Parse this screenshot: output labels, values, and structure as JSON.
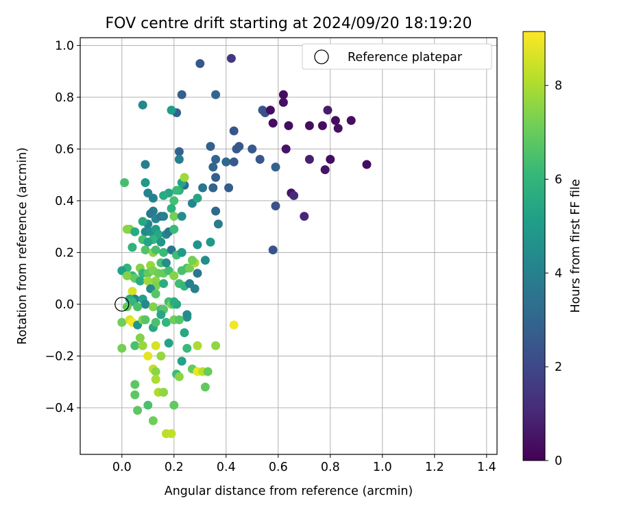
{
  "chart_data": {
    "type": "scatter",
    "title": "FOV centre drift starting at 2024/09/20 18:19:20",
    "xlabel": "Angular distance from reference (arcmin)",
    "ylabel": "Rotation from reference (arcmin)",
    "xlim": [
      -0.16,
      1.44
    ],
    "ylim": [
      -0.58,
      1.03
    ],
    "xticks": [
      0.0,
      0.2,
      0.4,
      0.6,
      0.8,
      1.0,
      1.2,
      1.4
    ],
    "xtick_labels": [
      "0.0",
      "0.2",
      "0.4",
      "0.6",
      "0.8",
      "1.0",
      "1.2",
      "1.4"
    ],
    "yticks": [
      -0.4,
      -0.2,
      0.0,
      0.2,
      0.4,
      0.6,
      0.8,
      1.0
    ],
    "ytick_labels": [
      "−0.4",
      "−0.2",
      "0.0",
      "0.2",
      "0.4",
      "0.6",
      "0.8",
      "1.0"
    ],
    "grid": true,
    "legend": {
      "position": "top-right",
      "entries": [
        "Reference platepar"
      ]
    },
    "reference_point": {
      "x": 0.0,
      "y": 0.0,
      "label": "Reference platepar"
    },
    "colorbar": {
      "label": "Hours from first FF file",
      "colormap": "viridis",
      "range": [
        0,
        9.15
      ],
      "ticks": [
        0,
        2,
        4,
        6,
        8
      ],
      "tick_labels": [
        "0",
        "2",
        "4",
        "6",
        "8"
      ],
      "colors": [
        "#440154",
        "#482878",
        "#3e4989",
        "#31688e",
        "#26828e",
        "#1f9e89",
        "#35b779",
        "#6ece58",
        "#b5de2b",
        "#fde725"
      ]
    },
    "points": [
      [
        0.42,
        0.95,
        1.5
      ],
      [
        0.3,
        0.93,
        2.5
      ],
      [
        0.23,
        0.81,
        2.8
      ],
      [
        0.36,
        0.81,
        3.0
      ],
      [
        0.21,
        0.74,
        2.9
      ],
      [
        0.08,
        0.77,
        4.3
      ],
      [
        0.19,
        0.75,
        5.1
      ],
      [
        0.43,
        0.67,
        2.4
      ],
      [
        0.34,
        0.61,
        2.8
      ],
      [
        0.22,
        0.59,
        2.9
      ],
      [
        0.44,
        0.6,
        2.6
      ],
      [
        0.45,
        0.61,
        2.5
      ],
      [
        0.5,
        0.6,
        2.6
      ],
      [
        0.36,
        0.56,
        3.0
      ],
      [
        0.4,
        0.55,
        3.1
      ],
      [
        0.43,
        0.55,
        2.6
      ],
      [
        0.53,
        0.56,
        2.5
      ],
      [
        0.59,
        0.53,
        2.8
      ],
      [
        0.35,
        0.53,
        3.0
      ],
      [
        0.36,
        0.49,
        2.8
      ],
      [
        0.22,
        0.56,
        3.9
      ],
      [
        0.09,
        0.54,
        4.0
      ],
      [
        0.54,
        0.75,
        2.5
      ],
      [
        0.55,
        0.74,
        2.3
      ],
      [
        0.57,
        0.75,
        0.3
      ],
      [
        0.58,
        0.7,
        0.3
      ],
      [
        0.62,
        0.81,
        0.3
      ],
      [
        0.62,
        0.78,
        0.4
      ],
      [
        0.63,
        0.6,
        0.5
      ],
      [
        0.64,
        0.69,
        0.3
      ],
      [
        0.72,
        0.69,
        0.3
      ],
      [
        0.72,
        0.56,
        0.8
      ],
      [
        0.77,
        0.69,
        0.3
      ],
      [
        0.78,
        0.52,
        0.5
      ],
      [
        0.79,
        0.75,
        0.7
      ],
      [
        0.8,
        0.56,
        0.3
      ],
      [
        0.82,
        0.71,
        0.3
      ],
      [
        0.83,
        0.68,
        0.4
      ],
      [
        0.88,
        0.71,
        0.3
      ],
      [
        0.94,
        0.54,
        0.3
      ],
      [
        0.65,
        0.43,
        0.5
      ],
      [
        0.66,
        0.42,
        1.1
      ],
      [
        0.7,
        0.34,
        1.0
      ],
      [
        0.59,
        0.38,
        2.3
      ],
      [
        0.58,
        0.21,
        2.4
      ],
      [
        0.41,
        0.45,
        2.7
      ],
      [
        0.35,
        0.45,
        2.9
      ],
      [
        0.31,
        0.45,
        3.6
      ],
      [
        0.36,
        0.36,
        3.1
      ],
      [
        0.37,
        0.31,
        3.8
      ],
      [
        0.24,
        0.46,
        3.2
      ],
      [
        0.23,
        0.47,
        5.3
      ],
      [
        0.24,
        0.49,
        7.8
      ],
      [
        0.22,
        0.44,
        5.7
      ],
      [
        0.21,
        0.44,
        6.2
      ],
      [
        0.18,
        0.43,
        5.4
      ],
      [
        0.2,
        0.4,
        6.4
      ],
      [
        0.16,
        0.42,
        5.6
      ],
      [
        0.12,
        0.41,
        4.0
      ],
      [
        0.09,
        0.47,
        4.9
      ],
      [
        0.1,
        0.43,
        4.1
      ],
      [
        0.01,
        0.47,
        6.4
      ],
      [
        0.27,
        0.39,
        4.2
      ],
      [
        0.29,
        0.41,
        5.4
      ],
      [
        0.19,
        0.37,
        5.8
      ],
      [
        0.12,
        0.36,
        3.9
      ],
      [
        0.11,
        0.35,
        3.7
      ],
      [
        0.13,
        0.33,
        4.2
      ],
      [
        0.1,
        0.31,
        4.1
      ],
      [
        0.08,
        0.32,
        5.5
      ],
      [
        0.15,
        0.34,
        3.6
      ],
      [
        0.16,
        0.34,
        4.0
      ],
      [
        0.2,
        0.34,
        7.2
      ],
      [
        0.23,
        0.34,
        4.5
      ],
      [
        0.03,
        0.29,
        7.2
      ],
      [
        0.02,
        0.29,
        7.5
      ],
      [
        0.05,
        0.28,
        5.6
      ],
      [
        0.09,
        0.28,
        4.3
      ],
      [
        0.11,
        0.28,
        4.6
      ],
      [
        0.13,
        0.29,
        5.0
      ],
      [
        0.14,
        0.27,
        5.5
      ],
      [
        0.17,
        0.27,
        4.2
      ],
      [
        0.18,
        0.28,
        3.7
      ],
      [
        0.2,
        0.29,
        6.2
      ],
      [
        0.12,
        0.25,
        6.0
      ],
      [
        0.08,
        0.25,
        6.4
      ],
      [
        0.1,
        0.24,
        5.3
      ],
      [
        0.15,
        0.24,
        4.8
      ],
      [
        0.29,
        0.23,
        4.7
      ],
      [
        0.34,
        0.24,
        4.9
      ],
      [
        0.04,
        0.22,
        5.9
      ],
      [
        0.09,
        0.21,
        6.6
      ],
      [
        0.12,
        0.2,
        7.5
      ],
      [
        0.13,
        0.21,
        6.4
      ],
      [
        0.16,
        0.2,
        6.2
      ],
      [
        0.19,
        0.21,
        3.6
      ],
      [
        0.21,
        0.19,
        6.3
      ],
      [
        0.23,
        0.2,
        5.0
      ],
      [
        0.15,
        0.16,
        6.5
      ],
      [
        0.11,
        0.15,
        7.7
      ],
      [
        0.07,
        0.14,
        7.4
      ],
      [
        0.02,
        0.14,
        6.0
      ],
      [
        0.0,
        0.13,
        5.2
      ],
      [
        0.04,
        0.11,
        6.1
      ],
      [
        0.08,
        0.12,
        6.0
      ],
      [
        0.1,
        0.12,
        6.9
      ],
      [
        0.12,
        0.13,
        7.3
      ],
      [
        0.14,
        0.12,
        7.1
      ],
      [
        0.16,
        0.12,
        7.0
      ],
      [
        0.18,
        0.13,
        6.4
      ],
      [
        0.17,
        0.16,
        4.5
      ],
      [
        0.2,
        0.11,
        7.4
      ],
      [
        0.23,
        0.13,
        6.5
      ],
      [
        0.25,
        0.14,
        6.5
      ],
      [
        0.26,
        0.14,
        7.2
      ],
      [
        0.28,
        0.16,
        7.9
      ],
      [
        0.27,
        0.17,
        7.2
      ],
      [
        0.29,
        0.12,
        3.6
      ],
      [
        0.32,
        0.17,
        4.5
      ],
      [
        0.02,
        0.11,
        7.4
      ],
      [
        0.05,
        0.1,
        6.9
      ],
      [
        0.07,
        0.09,
        5.6
      ],
      [
        0.1,
        0.09,
        7.8
      ],
      [
        0.13,
        0.09,
        7.5
      ],
      [
        0.13,
        0.07,
        7.3
      ],
      [
        0.16,
        0.08,
        5.7
      ],
      [
        0.22,
        0.08,
        6.3
      ],
      [
        0.24,
        0.07,
        6.0
      ],
      [
        0.26,
        0.08,
        3.9
      ],
      [
        0.28,
        0.06,
        4.0
      ],
      [
        0.04,
        0.05,
        8.6
      ],
      [
        0.05,
        0.02,
        4.0
      ],
      [
        0.08,
        0.02,
        5.2
      ],
      [
        0.09,
        0.0,
        4.3
      ],
      [
        0.11,
        0.06,
        4.4
      ],
      [
        0.13,
        0.04,
        6.7
      ],
      [
        0.03,
        0.02,
        5.6
      ],
      [
        0.04,
        0.01,
        6.0
      ],
      [
        0.02,
        -0.01,
        6.9
      ],
      [
        0.06,
        -0.01,
        6.5
      ],
      [
        0.12,
        -0.01,
        7.4
      ],
      [
        0.15,
        -0.02,
        6.3
      ],
      [
        0.16,
        -0.02,
        6.7
      ],
      [
        0.18,
        0.01,
        6.3
      ],
      [
        0.19,
        0.0,
        7.3
      ],
      [
        0.2,
        0.0,
        6.5
      ],
      [
        0.21,
        0.0,
        5.4
      ],
      [
        0.2,
        0.01,
        5.7
      ],
      [
        0.25,
        -0.05,
        4.6
      ],
      [
        0.25,
        -0.04,
        4.4
      ],
      [
        0.0,
        -0.07,
        7.1
      ],
      [
        0.03,
        -0.06,
        8.6
      ],
      [
        0.04,
        -0.07,
        9.0
      ],
      [
        0.06,
        -0.08,
        4.8
      ],
      [
        0.08,
        -0.06,
        7.5
      ],
      [
        0.09,
        -0.06,
        6.7
      ],
      [
        0.12,
        -0.09,
        5.5
      ],
      [
        0.13,
        -0.07,
        6.5
      ],
      [
        0.15,
        -0.04,
        5.4
      ],
      [
        0.17,
        -0.07,
        6.0
      ],
      [
        0.2,
        -0.06,
        7.1
      ],
      [
        0.22,
        -0.06,
        6.7
      ],
      [
        0.43,
        -0.08,
        9.0
      ],
      [
        0.18,
        -0.15,
        5.3
      ],
      [
        0.24,
        -0.11,
        5.5
      ],
      [
        0.25,
        -0.17,
        6.2
      ],
      [
        0.0,
        -0.17,
        7.2
      ],
      [
        0.05,
        -0.16,
        6.5
      ],
      [
        0.07,
        -0.13,
        7.4
      ],
      [
        0.08,
        -0.16,
        7.7
      ],
      [
        0.1,
        -0.2,
        8.8
      ],
      [
        0.13,
        -0.16,
        8.6
      ],
      [
        0.15,
        -0.2,
        7.7
      ],
      [
        0.29,
        -0.16,
        8.0
      ],
      [
        0.36,
        -0.16,
        7.6
      ],
      [
        0.12,
        -0.25,
        8.3
      ],
      [
        0.13,
        -0.26,
        7.5
      ],
      [
        0.21,
        -0.27,
        6.2
      ],
      [
        0.22,
        -0.28,
        7.5
      ],
      [
        0.23,
        -0.22,
        5.3
      ],
      [
        0.27,
        -0.25,
        7.0
      ],
      [
        0.29,
        -0.26,
        8.9
      ],
      [
        0.31,
        -0.26,
        8.2
      ],
      [
        0.33,
        -0.26,
        7.0
      ],
      [
        0.05,
        -0.31,
        6.8
      ],
      [
        0.13,
        -0.29,
        8.0
      ],
      [
        0.14,
        -0.34,
        8.0
      ],
      [
        0.16,
        -0.34,
        7.6
      ],
      [
        0.05,
        -0.35,
        6.8
      ],
      [
        0.1,
        -0.39,
        6.5
      ],
      [
        0.2,
        -0.39,
        6.9
      ],
      [
        0.32,
        -0.32,
        6.9
      ],
      [
        0.06,
        -0.41,
        6.8
      ],
      [
        0.12,
        -0.45,
        7.1
      ],
      [
        0.17,
        -0.5,
        8.2
      ],
      [
        0.19,
        -0.5,
        8.3
      ]
    ]
  }
}
